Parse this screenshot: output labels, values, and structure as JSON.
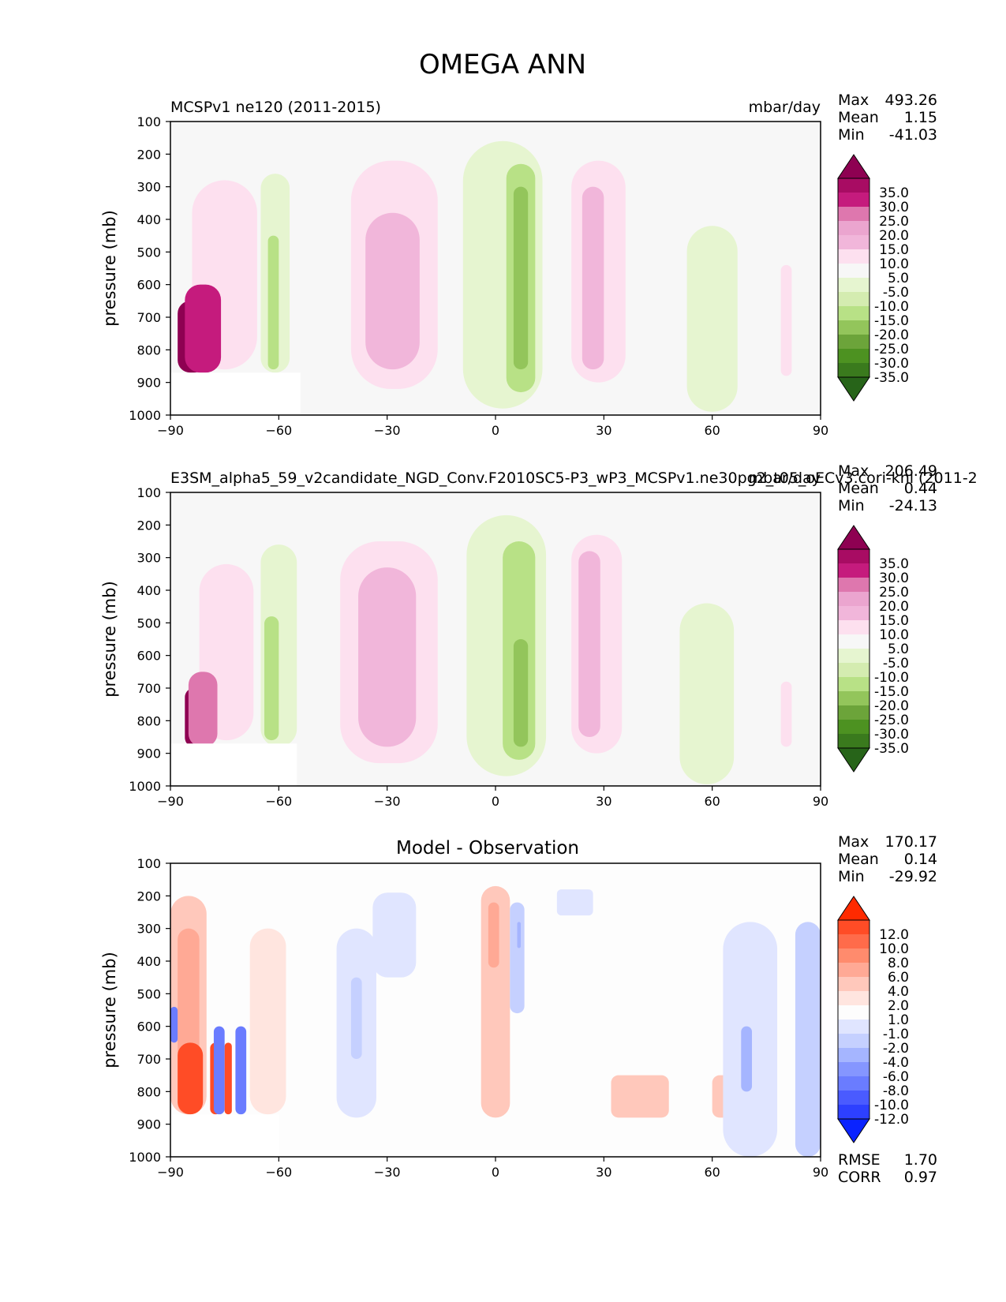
{
  "figure": {
    "title": "OMEGA ANN"
  },
  "chart_data": [
    {
      "type": "heatmap",
      "title": "MCSPv1 ne120 (2011-2015)",
      "units": "mbar/day",
      "xlabel": "",
      "ylabel": "pressure (mb)",
      "xlim": [
        -90,
        90
      ],
      "ylim": [
        1000,
        100
      ],
      "xticks": [
        "−90",
        "−60",
        "−30",
        "0",
        "30",
        "60",
        "90"
      ],
      "yticks": [
        "100",
        "200",
        "300",
        "400",
        "500",
        "600",
        "700",
        "800",
        "900",
        "1000"
      ],
      "stats": {
        "max_label": "Max",
        "max": "493.26",
        "mean_label": "Mean",
        "mean": "1.15",
        "min_label": "Min",
        "min": "-41.03"
      },
      "colorbar": {
        "labels": [
          "35.0",
          "30.0",
          "25.0",
          "20.0",
          "15.0",
          "10.0",
          "5.0",
          "-5.0",
          "-10.0",
          "-15.0",
          "-20.0",
          "-25.0",
          "-30.0",
          "-35.0"
        ],
        "colors": [
          "#8e0152",
          "#a80c63",
          "#c51b7d",
          "#de77ae",
          "#eba5cf",
          "#f1b6da",
          "#fde0ef",
          "#f7f7f7",
          "#e6f5d0",
          "#d4ecb0",
          "#b8e186",
          "#93c55b",
          "#6ca43a",
          "#4d9221",
          "#3a7a1d",
          "#276419"
        ]
      },
      "features": [
        {
          "x0": -84,
          "x1": -66,
          "y0": 280,
          "y1": 860,
          "value": 8
        },
        {
          "x0": -88,
          "x1": -80,
          "y0": 650,
          "y1": 870,
          "value": 45
        },
        {
          "x0": -86,
          "x1": -76,
          "y0": 600,
          "y1": 870,
          "value": 25
        },
        {
          "x0": -65,
          "x1": -57,
          "y0": 260,
          "y1": 870,
          "value": -8
        },
        {
          "x0": -63,
          "x1": -60,
          "y0": 450,
          "y1": 860,
          "value": -17
        },
        {
          "x0": -40,
          "x1": -16,
          "y0": 220,
          "y1": 920,
          "value": 7
        },
        {
          "x0": -36,
          "x1": -21,
          "y0": 380,
          "y1": 860,
          "value": 12
        },
        {
          "x0": -9,
          "x1": 13,
          "y0": 160,
          "y1": 980,
          "value": -8
        },
        {
          "x0": 3,
          "x1": 11,
          "y0": 230,
          "y1": 930,
          "value": -17
        },
        {
          "x0": 5,
          "x1": 9,
          "y0": 300,
          "y1": 860,
          "value": -24
        },
        {
          "x0": 21,
          "x1": 36,
          "y0": 220,
          "y1": 900,
          "value": 7
        },
        {
          "x0": 24,
          "x1": 30,
          "y0": 300,
          "y1": 860,
          "value": 12
        },
        {
          "x0": 53,
          "x1": 67,
          "y0": 420,
          "y1": 990,
          "value": -7
        },
        {
          "x0": 79,
          "x1": 82,
          "y0": 540,
          "y1": 880,
          "value": 7
        }
      ],
      "missing": {
        "x0": -90,
        "x1": -54,
        "y0": 870,
        "y1": 1000
      }
    },
    {
      "type": "heatmap",
      "title": "E3SM_alpha5_59_v2candidate_NGD_Conv.F2010SC5-P3_wP3_MCSPv1.ne30pg2_t05_oECv3.cori-knl (2011-2",
      "units": "mbar/day",
      "xlabel": "",
      "ylabel": "pressure (mb)",
      "xlim": [
        -90,
        90
      ],
      "ylim": [
        1000,
        100
      ],
      "xticks": [
        "−90",
        "−60",
        "−30",
        "0",
        "30",
        "60",
        "90"
      ],
      "yticks": [
        "100",
        "200",
        "300",
        "400",
        "500",
        "600",
        "700",
        "800",
        "900",
        "1000"
      ],
      "stats": {
        "max_label": "Max",
        "max": "206.49",
        "mean_label": "Mean",
        "mean": "0.44",
        "min_label": "Min",
        "min": "-24.13"
      },
      "colorbar": {
        "labels": [
          "35.0",
          "30.0",
          "25.0",
          "20.0",
          "15.0",
          "10.0",
          "5.0",
          "-5.0",
          "-10.0",
          "-15.0",
          "-20.0",
          "-25.0",
          "-30.0",
          "-35.0"
        ],
        "colors": [
          "#8e0152",
          "#a80c63",
          "#c51b7d",
          "#de77ae",
          "#eba5cf",
          "#f1b6da",
          "#fde0ef",
          "#f7f7f7",
          "#e6f5d0",
          "#d4ecb0",
          "#b8e186",
          "#93c55b",
          "#6ca43a",
          "#4d9221",
          "#3a7a1d",
          "#276419"
        ]
      },
      "features": [
        {
          "x0": -82,
          "x1": -67,
          "y0": 320,
          "y1": 860,
          "value": 7
        },
        {
          "x0": -86,
          "x1": -81,
          "y0": 700,
          "y1": 880,
          "value": 40
        },
        {
          "x0": -85,
          "x1": -77,
          "y0": 650,
          "y1": 880,
          "value": 22
        },
        {
          "x0": -65,
          "x1": -55,
          "y0": 260,
          "y1": 880,
          "value": -7
        },
        {
          "x0": -64,
          "x1": -60,
          "y0": 480,
          "y1": 860,
          "value": -16
        },
        {
          "x0": -43,
          "x1": -16,
          "y0": 250,
          "y1": 930,
          "value": 7
        },
        {
          "x0": -38,
          "x1": -22,
          "y0": 330,
          "y1": 880,
          "value": 12
        },
        {
          "x0": -8,
          "x1": 14,
          "y0": 170,
          "y1": 970,
          "value": -8
        },
        {
          "x0": 2,
          "x1": 11,
          "y0": 250,
          "y1": 920,
          "value": -17
        },
        {
          "x0": 5,
          "x1": 9,
          "y0": 550,
          "y1": 880,
          "value": -22
        },
        {
          "x0": 21,
          "x1": 35,
          "y0": 230,
          "y1": 900,
          "value": 7
        },
        {
          "x0": 23,
          "x1": 29,
          "y0": 280,
          "y1": 850,
          "value": 11
        },
        {
          "x0": 51,
          "x1": 66,
          "y0": 440,
          "y1": 995,
          "value": -6
        },
        {
          "x0": 79,
          "x1": 82,
          "y0": 680,
          "y1": 880,
          "value": 6
        }
      ],
      "missing": {
        "x0": -90,
        "x1": -55,
        "y0": 870,
        "y1": 1000
      }
    },
    {
      "type": "heatmap",
      "title": "Model - Observation",
      "units": "",
      "xlabel": "",
      "ylabel": "pressure (mb)",
      "xlim": [
        -90,
        90
      ],
      "ylim": [
        1000,
        100
      ],
      "xticks": [
        "−90",
        "−60",
        "−30",
        "0",
        "30",
        "60",
        "90"
      ],
      "yticks": [
        "100",
        "200",
        "300",
        "400",
        "500",
        "600",
        "700",
        "800",
        "900",
        "1000"
      ],
      "stats": {
        "max_label": "Max",
        "max": "170.17",
        "mean_label": "Mean",
        "mean": "0.14",
        "min_label": "Min",
        "min": "-29.92"
      },
      "extra_stats": {
        "rmse_label": "RMSE",
        "rmse": "1.70",
        "corr_label": "CORR",
        "corr": "0.97"
      },
      "colorbar": {
        "labels": [
          "12.0",
          "10.0",
          "8.0",
          "6.0",
          "4.0",
          "2.0",
          "1.0",
          "-1.0",
          "-2.0",
          "-4.0",
          "-6.0",
          "-8.0",
          "-10.0",
          "-12.0"
        ],
        "colors": [
          "#ff2a00",
          "#ff4c26",
          "#ff6b4a",
          "#ff8b6d",
          "#ffa995",
          "#ffc8bb",
          "#ffe5df",
          "#fdfdfd",
          "#e0e5ff",
          "#c5d0ff",
          "#a5b5ff",
          "#8596ff",
          "#6a7cff",
          "#4a5bff",
          "#2d40ff",
          "#0a23ff"
        ]
      },
      "features": [
        {
          "x0": -90,
          "x1": -80,
          "y0": 200,
          "y1": 870,
          "value": 3
        },
        {
          "x0": -88,
          "x1": -82,
          "y0": 300,
          "y1": 870,
          "value": 5
        },
        {
          "x0": -88,
          "x1": -81,
          "y0": 650,
          "y1": 870,
          "value": 11
        },
        {
          "x0": -79,
          "x1": -76,
          "y0": 650,
          "y1": 870,
          "value": 11
        },
        {
          "x0": -75,
          "x1": -73,
          "y0": 650,
          "y1": 870,
          "value": 10
        },
        {
          "x0": -78,
          "x1": -75,
          "y0": 600,
          "y1": 870,
          "value": -8
        },
        {
          "x0": -72,
          "x1": -69,
          "y0": 600,
          "y1": 870,
          "value": -9
        },
        {
          "x0": -90,
          "x1": -88,
          "y0": 540,
          "y1": 650,
          "value": -9
        },
        {
          "x0": -68,
          "x1": -58,
          "y0": 300,
          "y1": 870,
          "value": 1.5
        },
        {
          "x0": -44,
          "x1": -33,
          "y0": 300,
          "y1": 880,
          "value": -1.5
        },
        {
          "x0": -40,
          "x1": -37,
          "y0": 450,
          "y1": 700,
          "value": -3
        },
        {
          "x0": -34,
          "x1": -22,
          "y0": 190,
          "y1": 450,
          "value": -1.5
        },
        {
          "x0": -4,
          "x1": 4,
          "y0": 170,
          "y1": 880,
          "value": 3
        },
        {
          "x0": -2,
          "x1": 1,
          "y0": 220,
          "y1": 420,
          "value": 5
        },
        {
          "x0": 4,
          "x1": 8,
          "y0": 220,
          "y1": 560,
          "value": -3
        },
        {
          "x0": 6,
          "x1": 7,
          "y0": 280,
          "y1": 360,
          "value": -5
        },
        {
          "x0": 17,
          "x1": 27,
          "y0": 180,
          "y1": 260,
          "value": -1.5
        },
        {
          "x0": 32,
          "x1": 48,
          "y0": 750,
          "y1": 880,
          "value": 2.5
        },
        {
          "x0": 60,
          "x1": 70,
          "y0": 750,
          "y1": 880,
          "value": 3
        },
        {
          "x0": 63,
          "x1": 78,
          "y0": 280,
          "y1": 1000,
          "value": -1.5
        },
        {
          "x0": 68,
          "x1": 71,
          "y0": 600,
          "y1": 800,
          "value": -4
        },
        {
          "x0": 83,
          "x1": 90,
          "y0": 280,
          "y1": 1000,
          "value": -2.5
        }
      ],
      "missing": {
        "x0": -90,
        "x1": -60,
        "y0": 870,
        "y1": 1000
      }
    }
  ]
}
